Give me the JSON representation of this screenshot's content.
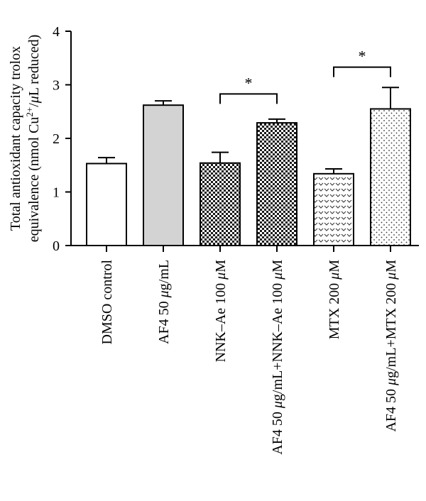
{
  "chart_data": {
    "type": "bar",
    "ylabel_line1": "Total antioxidant capacity trolox",
    "ylabel_line2_pre": "equivalence (nmol Cu",
    "ylabel_line2_sup": "2+",
    "ylabel_line2_mid": "/",
    "ylabel_line2_mu": "μ",
    "ylabel_line2_post": "L reduced)",
    "ylim": [
      0,
      4
    ],
    "yticks": [
      "0",
      "1",
      "2",
      "3",
      "4"
    ],
    "categories": [
      {
        "pre": "DMSO control",
        "mu": "",
        "post": ""
      },
      {
        "pre": "AF4 50 ",
        "mu": "μ",
        "post": "g/mL"
      },
      {
        "pre": "NNK–Ae 100 ",
        "mu": "μ",
        "post": "M"
      },
      {
        "pre": "AF4 50 ",
        "mu": "μ",
        "post": "g/mL+NNK–Ae 100 ",
        "mu2": "μ",
        "post2": "M"
      },
      {
        "pre": "MTX 200 ",
        "mu": "μ",
        "post": "M"
      },
      {
        "pre": "AF4 50 ",
        "mu": "μ",
        "post": "g/mL+MTX 200 ",
        "mu2": "μ",
        "post2": "M"
      }
    ],
    "values": [
      1.53,
      2.62,
      1.54,
      2.29,
      1.34,
      2.55
    ],
    "errors": [
      0.11,
      0.08,
      0.2,
      0.07,
      0.09,
      0.4
    ],
    "fills": [
      "white",
      "gray",
      "checker",
      "checker",
      "chevron",
      "dots"
    ],
    "significance": [
      {
        "from": 2,
        "to": 3,
        "label": "*",
        "y": 2.83
      },
      {
        "from": 4,
        "to": 5,
        "label": "*",
        "y": 3.33
      }
    ]
  }
}
